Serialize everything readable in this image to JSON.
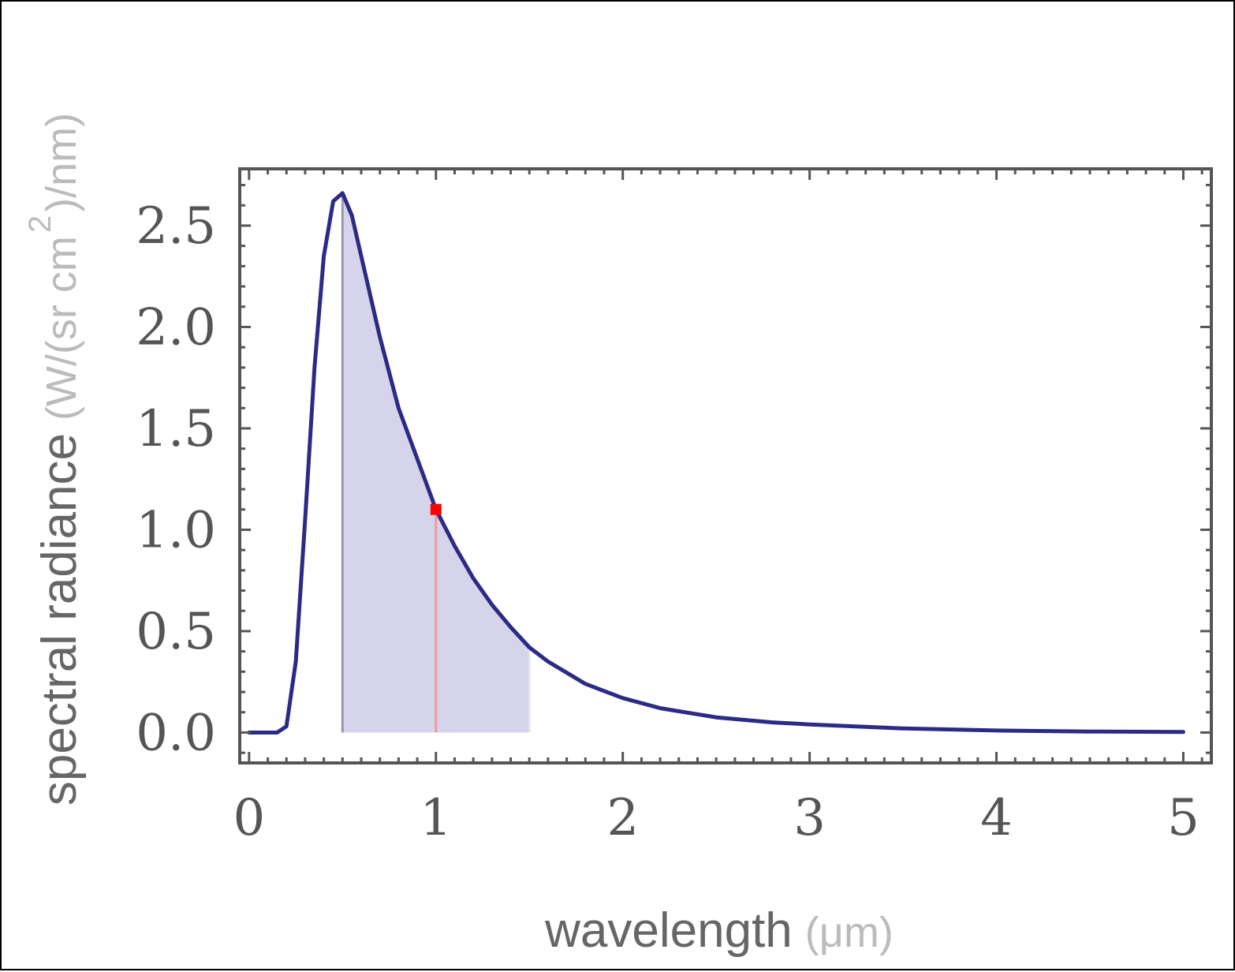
{
  "chart_data": {
    "type": "line",
    "title": "",
    "xlabel": "wavelength",
    "xlabel_unit": "(μm)",
    "ylabel": "spectral radiance",
    "ylabel_unit_pre": "(W/(sr cm",
    "ylabel_unit_sup": "2",
    "ylabel_unit_post": ")/nm)",
    "xlim": [
      -0.05,
      5.15
    ],
    "ylim": [
      -0.15,
      2.78
    ],
    "x_ticks": [
      0,
      1,
      2,
      3,
      4,
      5
    ],
    "x_tick_labels": [
      "0",
      "1",
      "2",
      "3",
      "4",
      "5"
    ],
    "y_ticks": [
      0.0,
      0.5,
      1.0,
      1.5,
      2.0,
      2.5
    ],
    "y_tick_labels": [
      "0.0",
      "0.5",
      "1.0",
      "1.5",
      "2.0",
      "2.5"
    ],
    "grid": false,
    "series": [
      {
        "color": "#2b2a86",
        "x": [
          0.0,
          0.15,
          0.2,
          0.25,
          0.3,
          0.35,
          0.4,
          0.45,
          0.5,
          0.55,
          0.6,
          0.7,
          0.8,
          0.9,
          1.0,
          1.1,
          1.2,
          1.3,
          1.4,
          1.5,
          1.6,
          1.8,
          2.0,
          2.2,
          2.5,
          2.8,
          3.0,
          3.5,
          4.0,
          4.5,
          5.0
        ],
        "y": [
          0.0,
          0.0,
          0.03,
          0.35,
          1.05,
          1.8,
          2.35,
          2.62,
          2.66,
          2.55,
          2.35,
          1.95,
          1.6,
          1.35,
          1.1,
          0.92,
          0.76,
          0.63,
          0.52,
          0.42,
          0.35,
          0.24,
          0.17,
          0.12,
          0.075,
          0.05,
          0.04,
          0.02,
          0.01,
          0.005,
          0.003
        ]
      }
    ],
    "shaded_region": {
      "x_start": 0.5,
      "x_end": 1.5,
      "color": "#d6d4ea"
    },
    "marker": {
      "x": 1.0,
      "y": 1.1,
      "color": "#ff0000"
    }
  }
}
